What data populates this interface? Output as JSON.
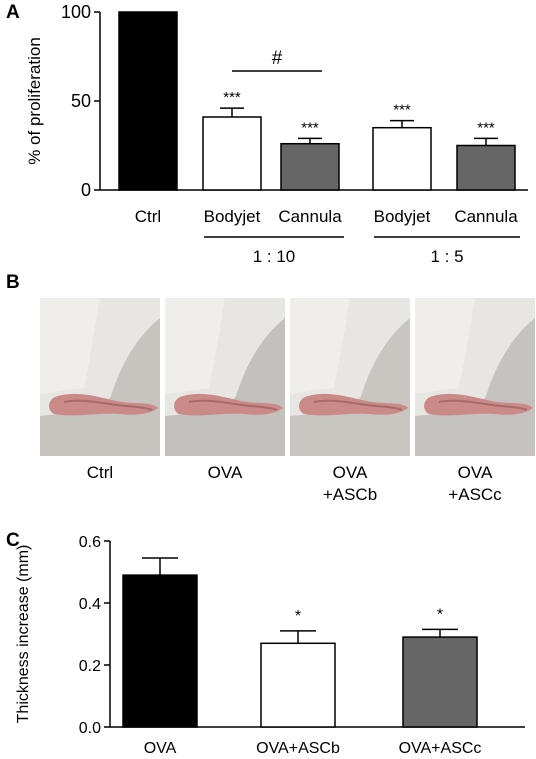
{
  "panels": {
    "a": "A",
    "b": "B",
    "c": "C"
  },
  "chart_data": [
    {
      "type": "bar",
      "ylabel": "% of proliferation",
      "ylim": [
        0,
        100
      ],
      "yticks": [
        "0",
        "50",
        "100"
      ],
      "categories": [
        "Ctrl",
        "Bodyjet",
        "Cannula",
        "Bodyjet",
        "Cannula"
      ],
      "values": [
        100,
        41,
        26,
        35,
        25
      ],
      "errors": [
        0,
        5,
        3,
        4,
        4
      ],
      "significance": [
        "",
        "***",
        "***",
        "***",
        "***"
      ],
      "bar_colors": [
        "#000000",
        "#ffffff",
        "#666666",
        "#ffffff",
        "#666666"
      ],
      "groups": [
        {
          "label": "1 : 10",
          "categories": [
            1,
            2
          ]
        },
        {
          "label": "1 : 5",
          "categories": [
            3,
            4
          ]
        }
      ],
      "comparison": {
        "label": "#",
        "between": [
          1,
          2
        ]
      }
    },
    {
      "type": "bar",
      "ylabel": "Thickness increase (mm)",
      "ylim": [
        0,
        0.6
      ],
      "yticks": [
        "0.0",
        "0.2",
        "0.4",
        "0.6"
      ],
      "categories": [
        "OVA",
        "OVA+ASCb",
        "OVA+ASCc"
      ],
      "values": [
        0.49,
        0.27,
        0.29
      ],
      "errors": [
        0.055,
        0.04,
        0.025
      ],
      "significance": [
        "",
        "*",
        "*"
      ],
      "bar_colors": [
        "#000000",
        "#ffffff",
        "#666666"
      ]
    }
  ],
  "photos": [
    {
      "label_line1": "Ctrl",
      "label_line2": ""
    },
    {
      "label_line1": "OVA",
      "label_line2": ""
    },
    {
      "label_line1": "OVA",
      "label_line2": "+ASCb"
    },
    {
      "label_line1": "OVA",
      "label_line2": "+ASCc"
    }
  ]
}
